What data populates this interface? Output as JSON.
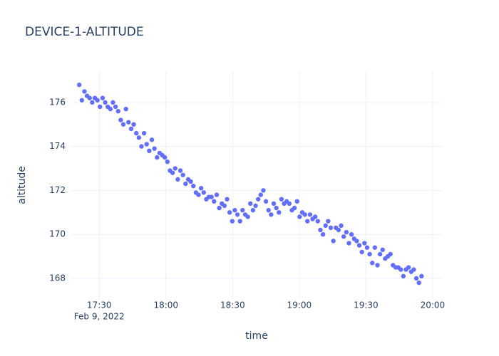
{
  "chart_data": {
    "type": "scatter",
    "title": "DEVICE-1-ALTITUDE",
    "x_label": "time",
    "y_label": "altitude",
    "x_date_label": "Feb 9, 2022",
    "color": "#636efa",
    "grid": true,
    "xlim": [
      "2022-02-09 17:17:25",
      "2022-02-09 20:04:12"
    ],
    "ylim": [
      167.06,
      177.42
    ],
    "xticks": [
      {
        "value": "2022-02-09 17:30:00",
        "label": "17:30"
      },
      {
        "value": "2022-02-09 18:00:00",
        "label": "18:00"
      },
      {
        "value": "2022-02-09 18:30:00",
        "label": "18:30"
      },
      {
        "value": "2022-02-09 19:00:00",
        "label": "19:00"
      },
      {
        "value": "2022-02-09 19:30:00",
        "label": "19:30"
      },
      {
        "value": "2022-02-09 20:00:00",
        "label": "20:00"
      }
    ],
    "yticks": [
      168,
      170,
      172,
      174,
      176
    ],
    "x": [
      "2022-02-09 17:21:00",
      "2022-02-09 17:22:10",
      "2022-02-09 17:23:20",
      "2022-02-09 17:24:30",
      "2022-02-09 17:25:40",
      "2022-02-09 17:26:50",
      "2022-02-09 17:28:00",
      "2022-02-09 17:29:10",
      "2022-02-09 17:30:20",
      "2022-02-09 17:31:30",
      "2022-02-09 17:32:40",
      "2022-02-09 17:33:50",
      "2022-02-09 17:35:00",
      "2022-02-09 17:36:10",
      "2022-02-09 17:37:20",
      "2022-02-09 17:38:30",
      "2022-02-09 17:39:40",
      "2022-02-09 17:40:50",
      "2022-02-09 17:42:00",
      "2022-02-09 17:43:10",
      "2022-02-09 17:44:20",
      "2022-02-09 17:45:30",
      "2022-02-09 17:46:40",
      "2022-02-09 17:47:50",
      "2022-02-09 17:49:00",
      "2022-02-09 17:50:10",
      "2022-02-09 17:51:20",
      "2022-02-09 17:52:30",
      "2022-02-09 17:53:40",
      "2022-02-09 17:54:50",
      "2022-02-09 17:56:00",
      "2022-02-09 17:57:10",
      "2022-02-09 17:58:20",
      "2022-02-09 17:59:30",
      "2022-02-09 18:00:40",
      "2022-02-09 18:01:50",
      "2022-02-09 18:03:00",
      "2022-02-09 18:04:10",
      "2022-02-09 18:05:20",
      "2022-02-09 18:06:30",
      "2022-02-09 18:07:40",
      "2022-02-09 18:08:50",
      "2022-02-09 18:10:00",
      "2022-02-09 18:11:10",
      "2022-02-09 18:12:20",
      "2022-02-09 18:13:30",
      "2022-02-09 18:14:40",
      "2022-02-09 18:15:50",
      "2022-02-09 18:17:00",
      "2022-02-09 18:18:10",
      "2022-02-09 18:19:20",
      "2022-02-09 18:20:30",
      "2022-02-09 18:21:40",
      "2022-02-09 18:22:50",
      "2022-02-09 18:24:00",
      "2022-02-09 18:25:10",
      "2022-02-09 18:26:20",
      "2022-02-09 18:27:30",
      "2022-02-09 18:28:40",
      "2022-02-09 18:29:50",
      "2022-02-09 18:31:00",
      "2022-02-09 18:32:10",
      "2022-02-09 18:33:20",
      "2022-02-09 18:34:30",
      "2022-02-09 18:35:40",
      "2022-02-09 18:36:50",
      "2022-02-09 18:38:00",
      "2022-02-09 18:39:10",
      "2022-02-09 18:40:20",
      "2022-02-09 18:41:30",
      "2022-02-09 18:42:40",
      "2022-02-09 18:43:50",
      "2022-02-09 18:45:00",
      "2022-02-09 18:46:10",
      "2022-02-09 18:47:20",
      "2022-02-09 18:48:30",
      "2022-02-09 18:49:40",
      "2022-02-09 18:50:50",
      "2022-02-09 18:52:00",
      "2022-02-09 18:53:10",
      "2022-02-09 18:54:20",
      "2022-02-09 18:55:30",
      "2022-02-09 18:56:40",
      "2022-02-09 18:57:50",
      "2022-02-09 18:59:00",
      "2022-02-09 19:00:10",
      "2022-02-09 19:01:20",
      "2022-02-09 19:02:30",
      "2022-02-09 19:03:40",
      "2022-02-09 19:04:50",
      "2022-02-09 19:06:00",
      "2022-02-09 19:07:10",
      "2022-02-09 19:08:20",
      "2022-02-09 19:09:30",
      "2022-02-09 19:10:40",
      "2022-02-09 19:11:50",
      "2022-02-09 19:13:00",
      "2022-02-09 19:14:10",
      "2022-02-09 19:15:20",
      "2022-02-09 19:16:30",
      "2022-02-09 19:17:40",
      "2022-02-09 19:18:50",
      "2022-02-09 19:20:00",
      "2022-02-09 19:21:10",
      "2022-02-09 19:22:20",
      "2022-02-09 19:23:30",
      "2022-02-09 19:24:40",
      "2022-02-09 19:25:50",
      "2022-02-09 19:27:00",
      "2022-02-09 19:28:10",
      "2022-02-09 19:29:20",
      "2022-02-09 19:30:30",
      "2022-02-09 19:31:40",
      "2022-02-09 19:32:50",
      "2022-02-09 19:34:00",
      "2022-02-09 19:35:10",
      "2022-02-09 19:36:20",
      "2022-02-09 19:37:30",
      "2022-02-09 19:38:40",
      "2022-02-09 19:39:50",
      "2022-02-09 19:41:00",
      "2022-02-09 19:42:10",
      "2022-02-09 19:43:20",
      "2022-02-09 19:44:30",
      "2022-02-09 19:45:40",
      "2022-02-09 19:46:50",
      "2022-02-09 19:48:00",
      "2022-02-09 19:49:10",
      "2022-02-09 19:50:20",
      "2022-02-09 19:51:30",
      "2022-02-09 19:52:40",
      "2022-02-09 19:53:50",
      "2022-02-09 19:55:00"
    ],
    "values": [
      176.8,
      176.1,
      176.5,
      176.3,
      176.2,
      176.0,
      176.2,
      176.1,
      175.8,
      176.2,
      176.0,
      175.8,
      175.7,
      176.0,
      175.8,
      175.6,
      175.2,
      175.0,
      175.7,
      175.1,
      174.8,
      175.0,
      174.6,
      174.4,
      174.0,
      174.6,
      174.1,
      173.8,
      174.3,
      173.9,
      173.5,
      173.7,
      173.6,
      173.5,
      173.3,
      172.9,
      172.8,
      173.0,
      172.5,
      172.9,
      172.7,
      172.3,
      172.5,
      172.4,
      172.2,
      171.9,
      171.8,
      172.1,
      171.9,
      171.6,
      171.7,
      171.7,
      171.5,
      171.8,
      171.2,
      171.4,
      171.3,
      171.6,
      171.0,
      170.6,
      171.1,
      170.9,
      170.6,
      171.1,
      170.9,
      170.8,
      171.4,
      171.1,
      171.3,
      171.6,
      171.8,
      172.0,
      171.5,
      171.1,
      170.9,
      171.4,
      171.2,
      171.0,
      171.6,
      171.4,
      171.5,
      171.4,
      171.1,
      171.2,
      171.5,
      170.8,
      171.0,
      170.9,
      170.6,
      170.9,
      170.7,
      170.8,
      170.6,
      170.2,
      170.0,
      170.4,
      170.6,
      170.3,
      169.7,
      170.3,
      170.2,
      170.4,
      169.9,
      170.1,
      169.6,
      170.0,
      169.8,
      169.7,
      169.5,
      169.2,
      169.6,
      169.4,
      169.1,
      168.7,
      169.4,
      168.6,
      169.1,
      169.3,
      168.9,
      169.0,
      169.1,
      168.6,
      168.5,
      168.5,
      168.4,
      168.1,
      168.4,
      168.5,
      168.3,
      168.4,
      168.0,
      167.8,
      168.1
    ]
  }
}
